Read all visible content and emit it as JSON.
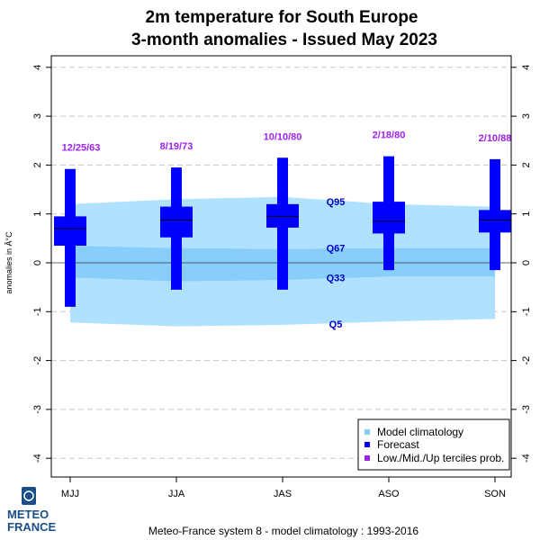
{
  "chart_data": {
    "type": "boxplot",
    "title_line1": "2m temperature  for  South Europe",
    "title_line2": "3-month anomalies    -    Issued May 2023",
    "ylabel": "anomalies in Â°C",
    "ylim": [
      -4.2,
      4.2
    ],
    "yticks": [
      "-4",
      "-3",
      "-2",
      "-1",
      "0",
      "1",
      "2",
      "3",
      "4"
    ],
    "grid": true,
    "categories": [
      "MJJ",
      "JJA",
      "JAS",
      "ASO",
      "SON"
    ],
    "climatology": {
      "q95": [
        1.2,
        1.3,
        1.35,
        1.2,
        1.15
      ],
      "q67": [
        0.35,
        0.3,
        0.28,
        0.3,
        0.3
      ],
      "q33": [
        -0.3,
        -0.38,
        -0.35,
        -0.28,
        -0.28
      ],
      "q5": [
        -1.22,
        -1.3,
        -1.27,
        -1.2,
        -1.15
      ]
    },
    "quantile_labels": [
      {
        "text": "Q95",
        "y": 1.25
      },
      {
        "text": "Q67",
        "y": 0.3
      },
      {
        "text": "Q33",
        "y": -0.3
      },
      {
        "text": "Q5",
        "y": -1.25
      }
    ],
    "forecast": [
      {
        "min": -0.9,
        "q1": 0.35,
        "median": 0.7,
        "q3": 0.95,
        "max": 1.92,
        "terciles": "12/25/63"
      },
      {
        "min": -0.55,
        "q1": 0.52,
        "median": 0.88,
        "q3": 1.15,
        "max": 1.95,
        "terciles": "8/19/73"
      },
      {
        "min": -0.55,
        "q1": 0.72,
        "median": 0.95,
        "q3": 1.2,
        "max": 2.15,
        "terciles": "10/10/80"
      },
      {
        "min": -0.15,
        "q1": 0.6,
        "median": 0.85,
        "q3": 1.25,
        "max": 2.18,
        "terciles": "2/18/80"
      },
      {
        "min": -0.15,
        "q1": 0.62,
        "median": 0.88,
        "q3": 1.08,
        "max": 2.12,
        "terciles": "2/10/88"
      }
    ],
    "legend": {
      "placement": "bottom-right",
      "items": [
        {
          "label": "Model climatology",
          "color": "#87cefa"
        },
        {
          "label": "Forecast",
          "color": "#0000ff"
        },
        {
          "label": "Low./Mid./Up terciles prob.",
          "color": "#a020f0"
        }
      ]
    },
    "footer": "Meteo-France system 8  -  model climatology : 1993-2016",
    "colors": {
      "outer_band": "#b0e2ff",
      "inner_band": "#87cefa",
      "forecast": "#0000ff",
      "tercile_text": "#a020f0",
      "quantile_text": "#0000cd"
    }
  },
  "logo": {
    "line1": "METEO",
    "line2": "FRANCE"
  }
}
